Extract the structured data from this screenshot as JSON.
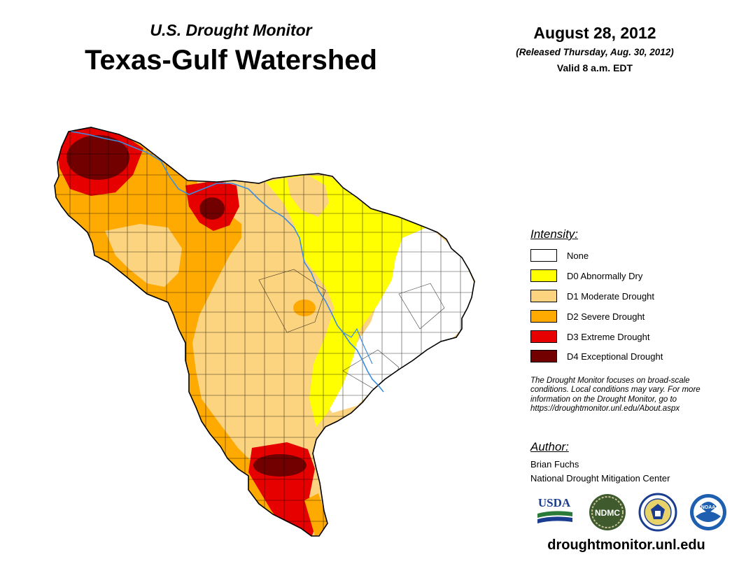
{
  "header": {
    "subtitle": "U.S. Drought Monitor",
    "title": "Texas-Gulf Watershed",
    "date": "August 28, 2012",
    "released": "(Released Thursday, Aug. 30, 2012)",
    "valid": "Valid 8 a.m. EDT"
  },
  "legend": {
    "heading": "Intensity:",
    "items": [
      {
        "label": "None",
        "color": "#ffffff"
      },
      {
        "label": "D0 Abnormally Dry",
        "color": "#ffff00"
      },
      {
        "label": "D1 Moderate Drought",
        "color": "#fcd37f"
      },
      {
        "label": "D2 Severe Drought",
        "color": "#ffaa00"
      },
      {
        "label": "D3 Extreme Drought",
        "color": "#e60000"
      },
      {
        "label": "D4 Exceptional Drought",
        "color": "#730000"
      }
    ]
  },
  "note": {
    "line1": "The Drought Monitor focuses on broad-scale",
    "line2": "conditions. Local conditions may vary. For more",
    "line3": "information on the Drought Monitor, go to",
    "line4": "https://droughtmonitor.unl.edu/About.aspx"
  },
  "author": {
    "heading": "Author:",
    "name": "Brian Fuchs",
    "org": "National Drought Mitigation Center"
  },
  "logos": {
    "usda": "USDA",
    "ndmc": "NDMC",
    "noaa": "NOAA"
  },
  "footer": {
    "website": "droughtmonitor.unl.edu"
  },
  "colors": {
    "river": "#3c8de0",
    "border": "#000000"
  }
}
